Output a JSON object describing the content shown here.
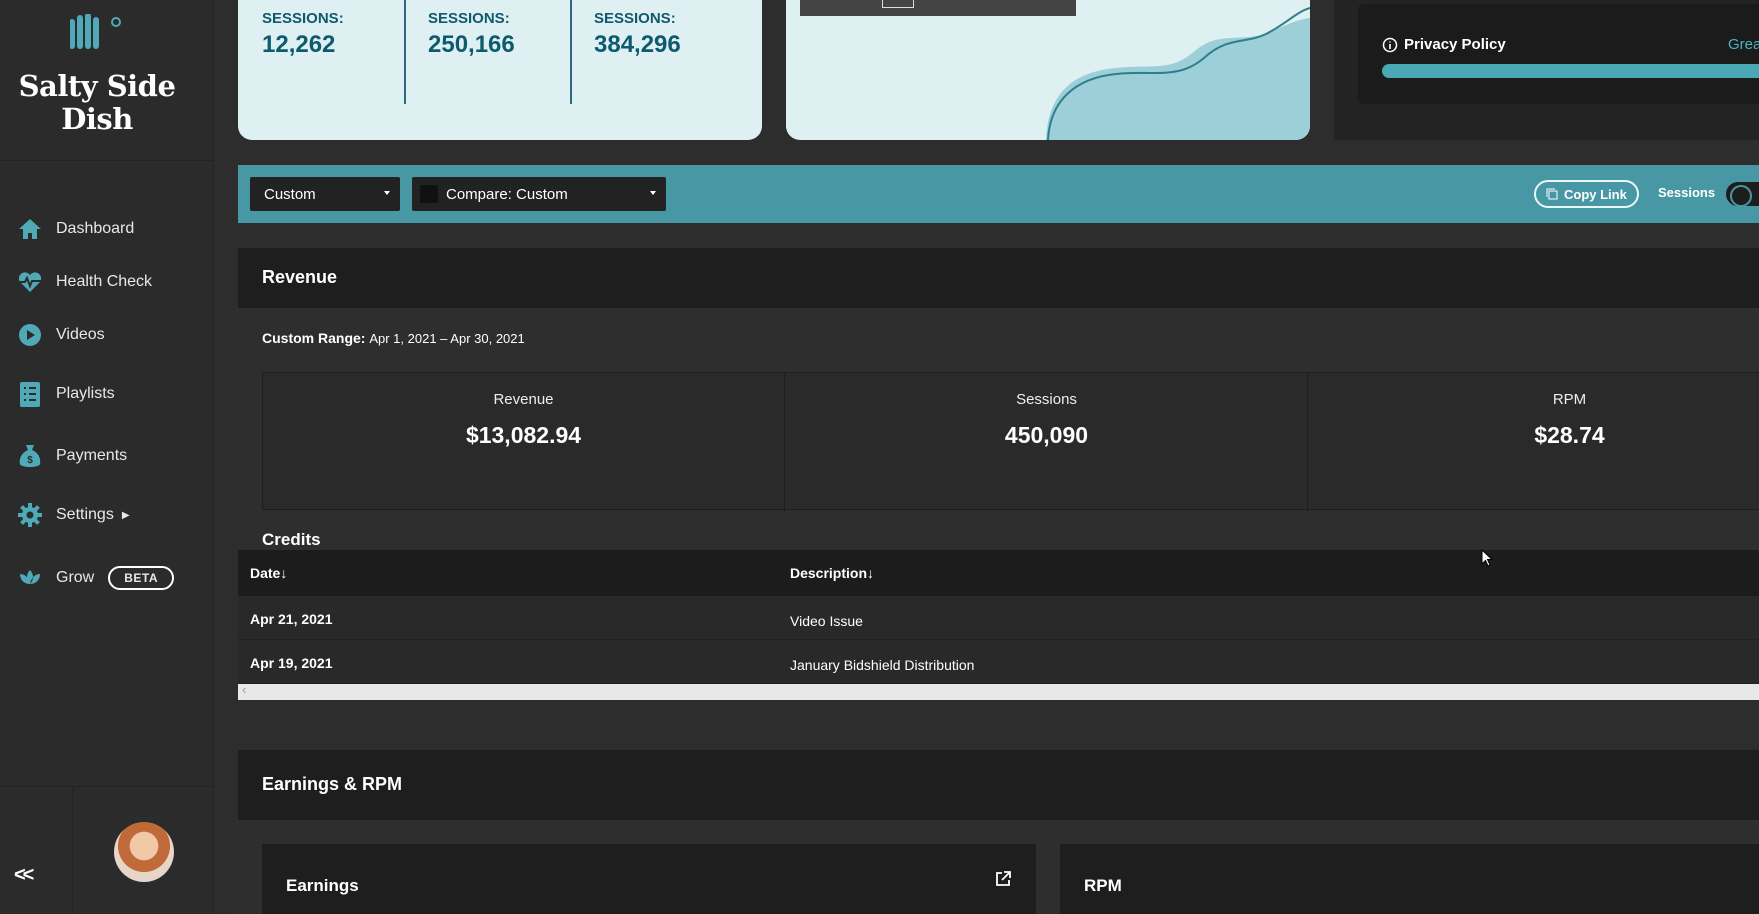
{
  "sidebar": {
    "brand": "Salty Side Dish",
    "items": [
      {
        "label": "Dashboard",
        "icon": "home-icon"
      },
      {
        "label": "Health Check",
        "icon": "heartbeat-icon"
      },
      {
        "label": "Videos",
        "icon": "play-icon"
      },
      {
        "label": "Playlists",
        "icon": "list-icon"
      },
      {
        "label": "Payments",
        "icon": "money-bag-icon"
      },
      {
        "label": "Settings",
        "icon": "gear-icon"
      },
      {
        "label": "Grow",
        "icon": "lotus-icon",
        "badge": "BETA"
      }
    ],
    "collapse_label": "<<"
  },
  "top_stats": [
    {
      "label": "SESSIONS:",
      "value": "12,262"
    },
    {
      "label": "SESSIONS:",
      "value": "250,166"
    },
    {
      "label": "SESSIONS:",
      "value": "384,296"
    }
  ],
  "privacy": {
    "label": "Privacy Policy",
    "status": "Grea",
    "progress": 1.0
  },
  "filters": {
    "range_select": "Custom",
    "compare_select": "Compare: Custom",
    "copy_link": "Copy Link",
    "toggle_label": "Sessions"
  },
  "revenue": {
    "title": "Revenue",
    "range_label": "Custom Range:",
    "range_value": "Apr 1, 2021 – Apr 30, 2021",
    "metrics": [
      {
        "label": "Revenue",
        "value": "$13,082.94"
      },
      {
        "label": "Sessions",
        "value": "450,090"
      },
      {
        "label": "RPM",
        "value": "$28.74"
      }
    ],
    "credits_title": "Credits",
    "columns": [
      "Date↓",
      "Description↓"
    ],
    "rows": [
      {
        "date": "Apr 21, 2021",
        "description": "Video Issue"
      },
      {
        "date": "Apr 19, 2021",
        "description": "January Bidshield Distribution"
      }
    ]
  },
  "earnings": {
    "title": "Earnings & RPM",
    "cards": [
      "Earnings",
      "RPM"
    ]
  },
  "colors": {
    "accent": "#4798a4",
    "stat_text": "#0e5a6e",
    "card_bg": "#dff0f2"
  }
}
